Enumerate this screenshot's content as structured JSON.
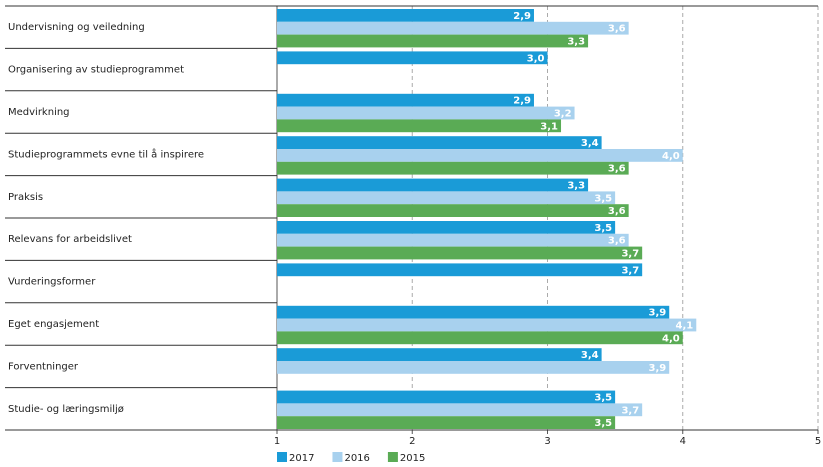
{
  "chart_data": {
    "type": "hbar",
    "categories": [
      "Undervisning og veiledning",
      "Organisering av studieprogrammet",
      "Medvirkning",
      "Studieprogrammets evne til å inspirere",
      "Praksis",
      "Relevans for arbeidslivet",
      "Vurderingsformer",
      "Eget engasjement",
      "Forventninger",
      "Studie- og læringsmiljø"
    ],
    "series": [
      {
        "name": "2017",
        "color": "#1a9bd7",
        "values": [
          2.9,
          3.0,
          2.9,
          3.4,
          3.3,
          3.5,
          3.7,
          3.9,
          3.4,
          3.5
        ],
        "value_labels": [
          "2,9",
          "3,0",
          "2,9",
          "3,4",
          "3,3",
          "3,5",
          "3,7",
          "3,9",
          "3,4",
          "3,5"
        ]
      },
      {
        "name": "2016",
        "color": "#a8d1ee",
        "values": [
          3.6,
          null,
          3.2,
          4.0,
          3.5,
          3.6,
          null,
          4.1,
          3.9,
          3.7
        ],
        "value_labels": [
          "3,6",
          null,
          "3,2",
          "4,0",
          "3,5",
          "3,6",
          null,
          "4,1",
          "3,9",
          "3,7"
        ]
      },
      {
        "name": "2015",
        "color": "#5aab55",
        "values": [
          3.3,
          null,
          3.1,
          3.6,
          3.6,
          3.7,
          null,
          4.0,
          null,
          3.5
        ],
        "value_labels": [
          "3,3",
          null,
          "3,1",
          "3,6",
          "3,6",
          "3,7",
          null,
          "4,0",
          null,
          "3,5"
        ]
      }
    ],
    "xlim": [
      1,
      5
    ],
    "xticks": [
      1,
      2,
      3,
      4,
      5
    ],
    "grid": true,
    "legend": "bottom-left"
  }
}
